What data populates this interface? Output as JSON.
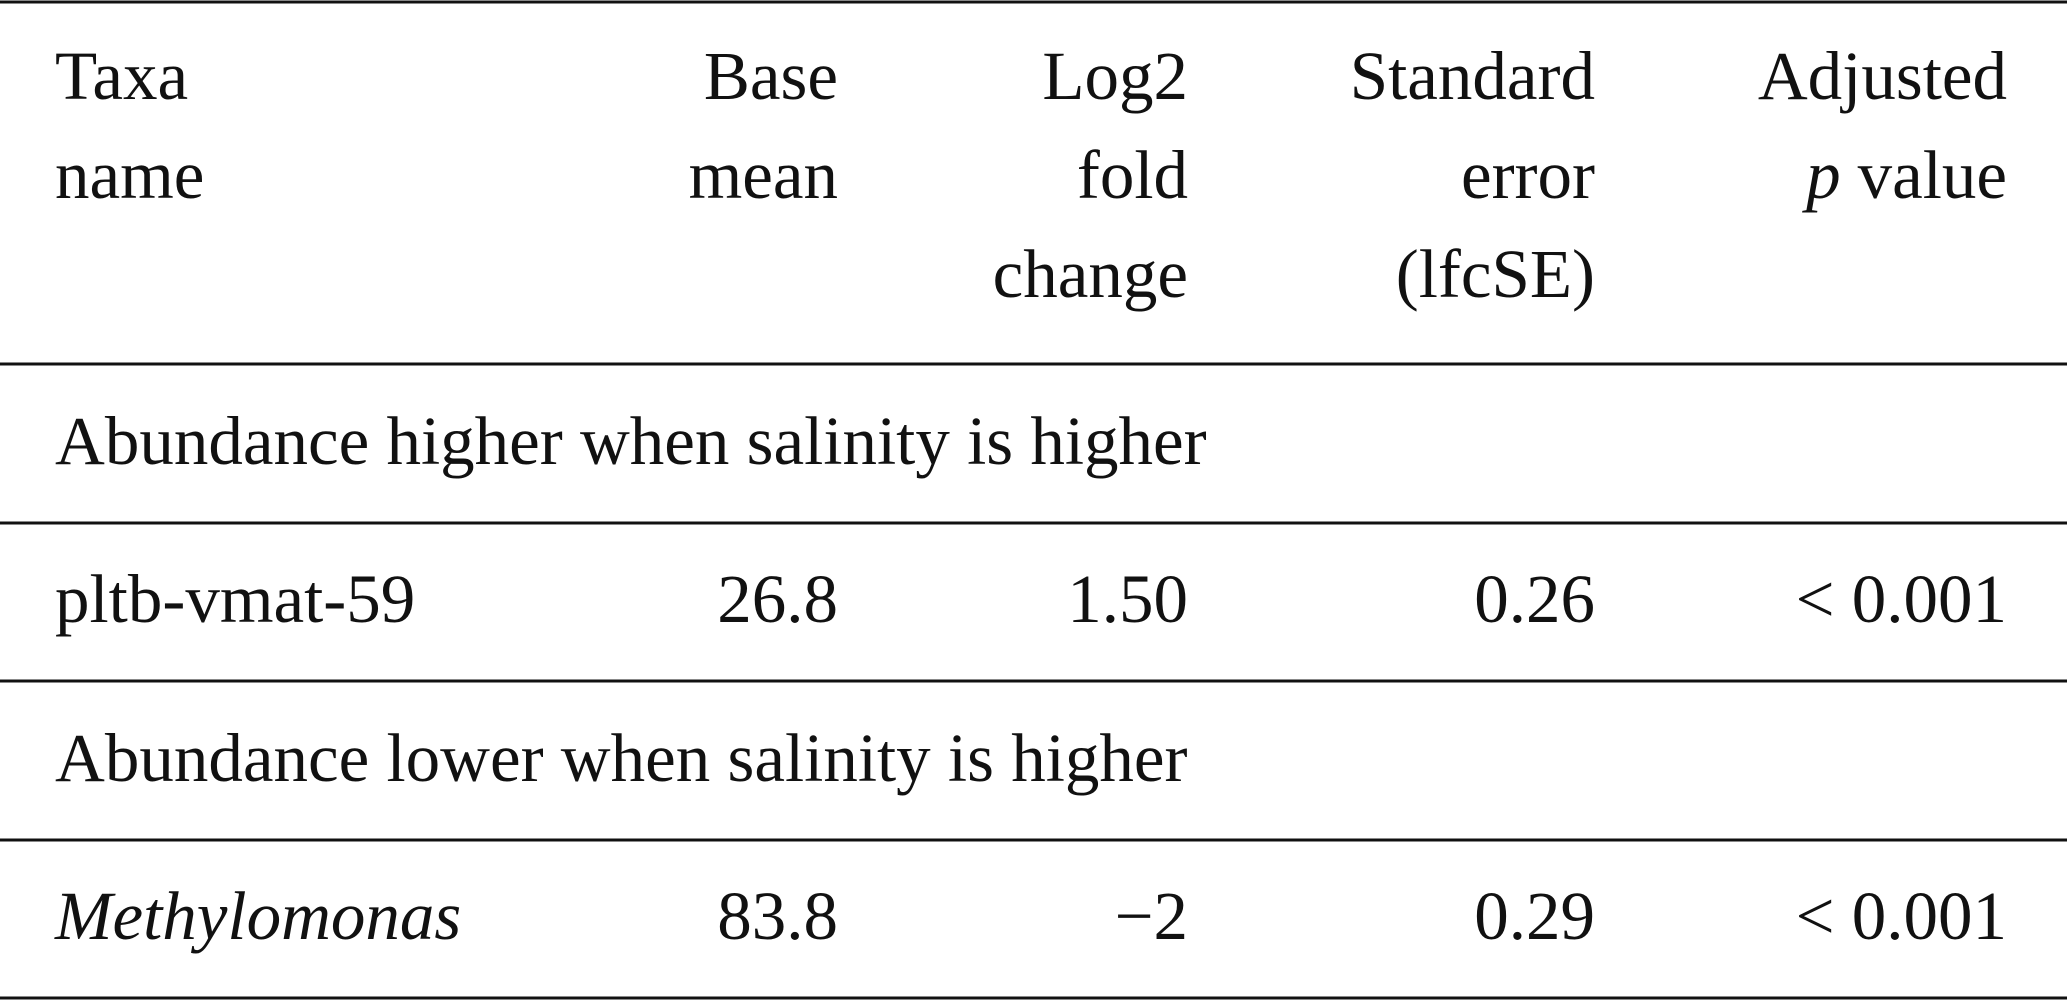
{
  "table": {
    "header": [
      {
        "lines": [
          "Taxa",
          "name"
        ]
      },
      {
        "lines": [
          "Base",
          "mean"
        ]
      },
      {
        "lines": [
          "Log2",
          "fold",
          "change"
        ]
      },
      {
        "lines": [
          "Standard",
          "error",
          "(lfcSE)"
        ]
      },
      {
        "lines": [
          "Adjusted",
          "value"
        ],
        "symbol": "p"
      }
    ],
    "sections": [
      {
        "title": "Abundance higher when salinity is higher",
        "rows": [
          {
            "cells": [
              "pltb-vmat-59",
              "26.8",
              "1.50",
              "0.26",
              "< 0.001"
            ],
            "italic_name": false
          }
        ]
      },
      {
        "title": "Abundance lower when salinity is higher",
        "rows": [
          {
            "cells": [
              "Methylomonas",
              "83.8",
              "−2",
              "0.29",
              "< 0.001"
            ],
            "italic_name": true
          }
        ]
      }
    ]
  }
}
